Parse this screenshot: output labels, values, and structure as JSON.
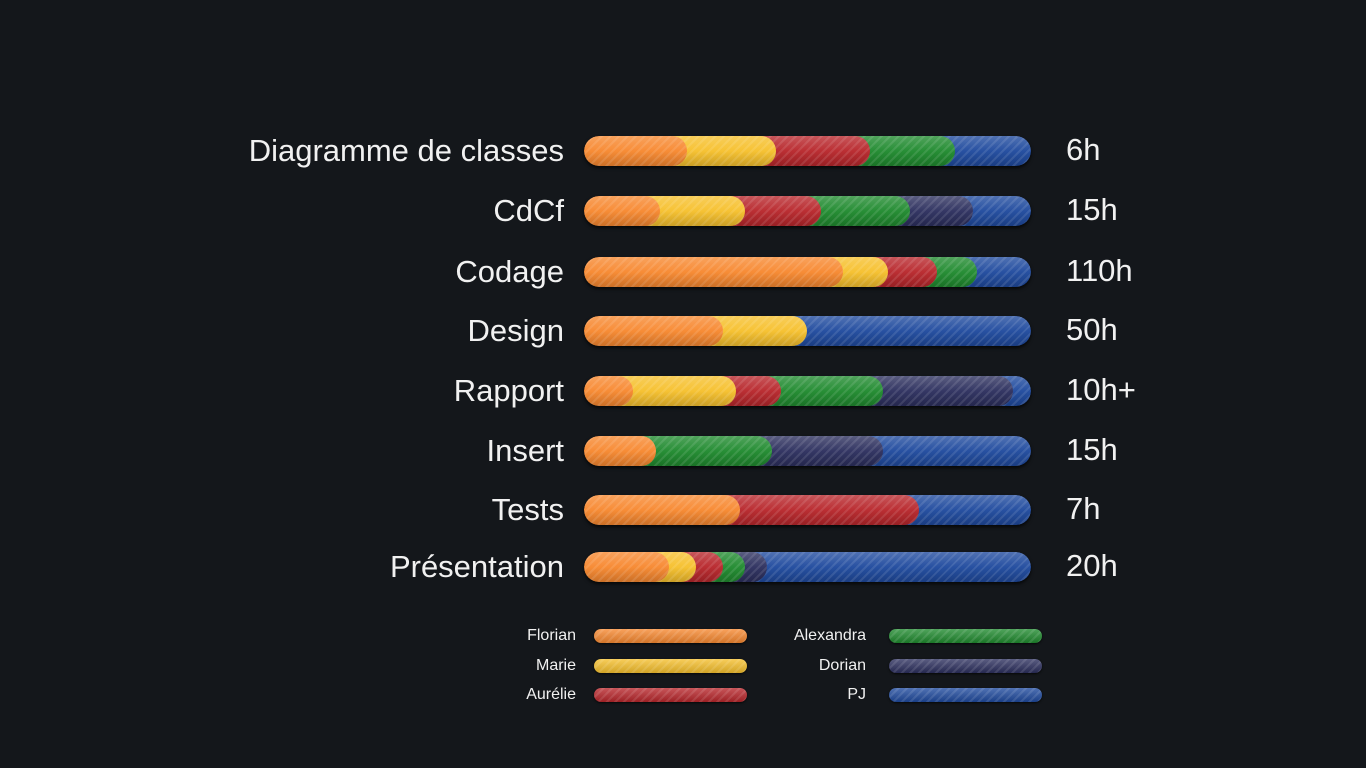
{
  "chart_data": {
    "type": "bar",
    "orientation": "horizontal",
    "stacked": true,
    "normalized": true,
    "legend_placement": "bottom",
    "grid": false,
    "categories": [
      "Diagramme de classes",
      "CdCf",
      "Codage",
      "Design",
      "Rapport",
      "Insert",
      "Tests",
      "Présentation"
    ],
    "totals": [
      "6h",
      "15h",
      "110h",
      "50h",
      "10h+",
      "15h",
      "7h",
      "20h"
    ],
    "series": [
      {
        "name": "Florian",
        "color": "#f7882f",
        "values": [
          23,
          17,
          58,
          31,
          11,
          16,
          35,
          19
        ]
      },
      {
        "name": "Marie",
        "color": "#f6c02c",
        "values": [
          20,
          19,
          10,
          19,
          23,
          0,
          0,
          6
        ]
      },
      {
        "name": "Aurélie",
        "color": "#b8262b",
        "values": [
          21,
          17,
          11,
          0,
          10,
          0,
          40,
          6
        ]
      },
      {
        "name": "Alexandra",
        "color": "#1f8a2e",
        "values": [
          19,
          20,
          9,
          0,
          23,
          26,
          0,
          5
        ]
      },
      {
        "name": "Dorian",
        "color": "#2c2f5e",
        "values": [
          0,
          14,
          0,
          0,
          29,
          25,
          0,
          5
        ]
      },
      {
        "name": "PJ",
        "color": "#1f4a9e",
        "values": [
          17,
          13,
          12,
          50,
          4,
          33,
          25,
          59
        ]
      }
    ]
  }
}
